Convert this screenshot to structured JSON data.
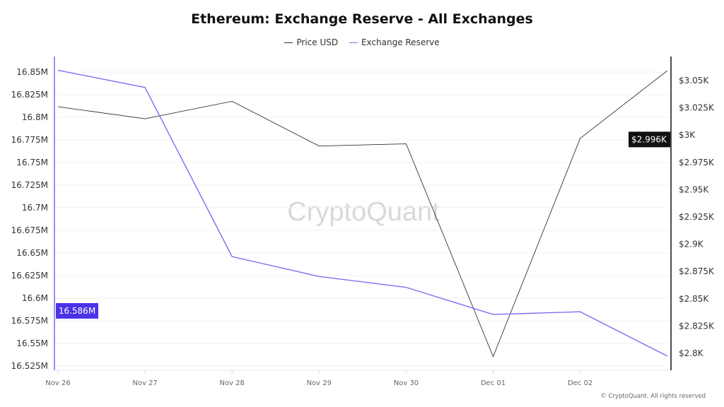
{
  "chart_data": {
    "type": "line",
    "title": "Ethereum: Exchange Reserve - All Exchanges",
    "x": [
      "Nov 26",
      "Nov 27",
      "Nov 28",
      "Nov 29",
      "Nov 30",
      "Dec 01",
      "Dec 02",
      ""
    ],
    "series": [
      {
        "name": "Price USD",
        "axis": "right",
        "color": "#333333",
        "values": [
          3.026,
          3.015,
          3.031,
          2.99,
          2.992,
          2.797,
          2.997,
          3.059
        ]
      },
      {
        "name": "Exchange Reserve",
        "axis": "left",
        "color": "#7b6ff0",
        "values": [
          16.852,
          16.833,
          16.646,
          16.624,
          16.612,
          16.582,
          16.585,
          16.536
        ]
      }
    ],
    "left_axis": {
      "ticks": [
        "16.85M",
        "16.825M",
        "16.8M",
        "16.775M",
        "16.75M",
        "16.725M",
        "16.7M",
        "16.675M",
        "16.65M",
        "16.625M",
        "16.6M",
        "16.575M",
        "16.55M",
        "16.525M"
      ],
      "ylim": [
        16.525,
        16.85
      ],
      "unit": "M",
      "highlight": "16.586M",
      "highlight_color": "#4b32e6"
    },
    "right_axis": {
      "ticks": [
        "$3.05K",
        "$3.025K",
        "$3K",
        "$2.975K",
        "$2.95K",
        "$2.925K",
        "$2.9K",
        "$2.875K",
        "$2.85K",
        "$2.825K",
        "$2.8K"
      ],
      "ylim": [
        2.8,
        3.05
      ],
      "unit": "K",
      "highlight": "$2.996K",
      "highlight_color": "#111111"
    },
    "grid": true,
    "legend": "top-center",
    "watermark": "CryptoQuant"
  },
  "footer": "© CryptoQuant. All rights reserved"
}
